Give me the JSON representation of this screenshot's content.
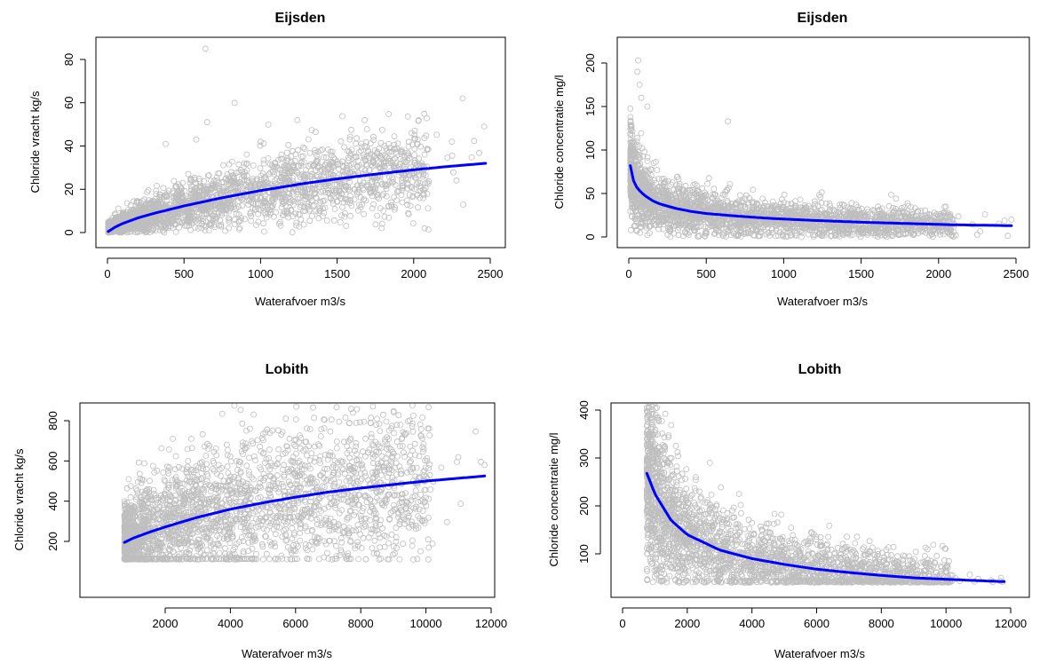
{
  "chart_data": [
    {
      "type": "scatter",
      "title": "Eijsden",
      "xlabel": "Waterafvoer m3/s",
      "ylabel": "Chloride vracht kg/s",
      "xlim": [
        0,
        2500
      ],
      "ylim": [
        0,
        85
      ],
      "xticks": [
        0,
        500,
        1000,
        1500,
        2000,
        2500
      ],
      "yticks": [
        0,
        20,
        40,
        60,
        80
      ],
      "grid": false,
      "colors": {
        "points": "#bebebe",
        "fit": "#0000ff"
      },
      "fit": {
        "x": [
          5,
          50,
          100,
          200,
          300,
          500,
          750,
          1000,
          1250,
          1500,
          1750,
          2000,
          2250,
          2470
        ],
        "y": [
          0.5,
          2.5,
          4.2,
          6.8,
          8.8,
          12.3,
          16.1,
          19.4,
          22.3,
          24.8,
          27,
          29,
          30.7,
          32
        ]
      },
      "outliers": [
        [
          640,
          85
        ],
        [
          830,
          60
        ],
        [
          1240,
          52
        ],
        [
          1680,
          52
        ],
        [
          2320,
          62
        ],
        [
          2460,
          49
        ],
        [
          650,
          51
        ],
        [
          2250,
          42
        ],
        [
          580,
          43
        ],
        [
          380,
          41
        ]
      ]
    },
    {
      "type": "scatter",
      "title": "Eijsden",
      "xlabel": "Waterafvoer m3/s",
      "ylabel": "Chloride concentratie mg/l",
      "xlim": [
        0,
        2500
      ],
      "ylim": [
        0,
        205
      ],
      "xticks": [
        0,
        500,
        1000,
        1500,
        2000,
        2500
      ],
      "yticks": [
        0,
        50,
        100,
        150,
        200
      ],
      "grid": false,
      "colors": {
        "points": "#bebebe",
        "fit": "#0000ff"
      },
      "fit": {
        "x": [
          10,
          20,
          40,
          60,
          100,
          150,
          200,
          300,
          400,
          500,
          700,
          900,
          1200,
          1500,
          1800,
          2100,
          2470
        ],
        "y": [
          82,
          70,
          60,
          55,
          48,
          42,
          38,
          33,
          29.5,
          27,
          24,
          21.5,
          19,
          17,
          15.5,
          14,
          13
        ]
      },
      "outliers": [
        [
          60,
          203
        ],
        [
          55,
          190
        ],
        [
          120,
          150
        ],
        [
          640,
          133
        ],
        [
          70,
          175
        ],
        [
          80,
          160
        ],
        [
          1200,
          41
        ],
        [
          2300,
          26
        ],
        [
          2470,
          20
        ]
      ]
    },
    {
      "type": "scatter",
      "title": "Lobith",
      "xlabel": "Waterafvoer m3/s",
      "ylabel": "Chloride vracht kg/s",
      "xlim": [
        750,
        11800
      ],
      "ylim": [
        100,
        840
      ],
      "xticks": [
        2000,
        4000,
        6000,
        8000,
        10000,
        12000
      ],
      "yticks": [
        200,
        400,
        600,
        800
      ],
      "grid": false,
      "colors": {
        "points": "#bebebe",
        "fit": "#0000ff"
      },
      "fit": {
        "x": [
          750,
          1000,
          1500,
          2000,
          3000,
          4000,
          5000,
          6000,
          7000,
          8000,
          9000,
          10000,
          11000,
          11800
        ],
        "y": [
          195,
          215,
          245,
          272,
          320,
          360,
          392,
          420,
          445,
          465,
          483,
          500,
          514,
          525
        ]
      },
      "outliers": [
        [
          3750,
          835
        ],
        [
          5700,
          810
        ],
        [
          8100,
          795
        ],
        [
          8300,
          790
        ],
        [
          11800,
          580
        ],
        [
          10950,
          595
        ],
        [
          4600,
          760
        ],
        [
          2800,
          710
        ]
      ]
    },
    {
      "type": "scatter",
      "title": "Lobith",
      "xlabel": "Waterafvoer m3/s",
      "ylabel": "Chloride concentratie mg/l",
      "xlim": [
        0,
        11800
      ],
      "ylim": [
        30,
        395
      ],
      "xticks": [
        0,
        2000,
        4000,
        6000,
        8000,
        10000,
        12000
      ],
      "yticks": [
        100,
        200,
        300,
        400
      ],
      "grid": false,
      "colors": {
        "points": "#bebebe",
        "fit": "#0000ff"
      },
      "fit": {
        "x": [
          750,
          1000,
          1500,
          2000,
          3000,
          4000,
          5000,
          6000,
          7000,
          8000,
          9000,
          10000,
          11000,
          11800
        ],
        "y": [
          268,
          225,
          170,
          140,
          108,
          90,
          78,
          68,
          61,
          55,
          50,
          47,
          44,
          42
        ]
      },
      "outliers": [
        [
          900,
          392
        ],
        [
          1100,
          385
        ],
        [
          2700,
          290
        ],
        [
          3600,
          225
        ],
        [
          8500,
          95
        ],
        [
          11700,
          50
        ],
        [
          10200,
          55
        ]
      ]
    }
  ]
}
